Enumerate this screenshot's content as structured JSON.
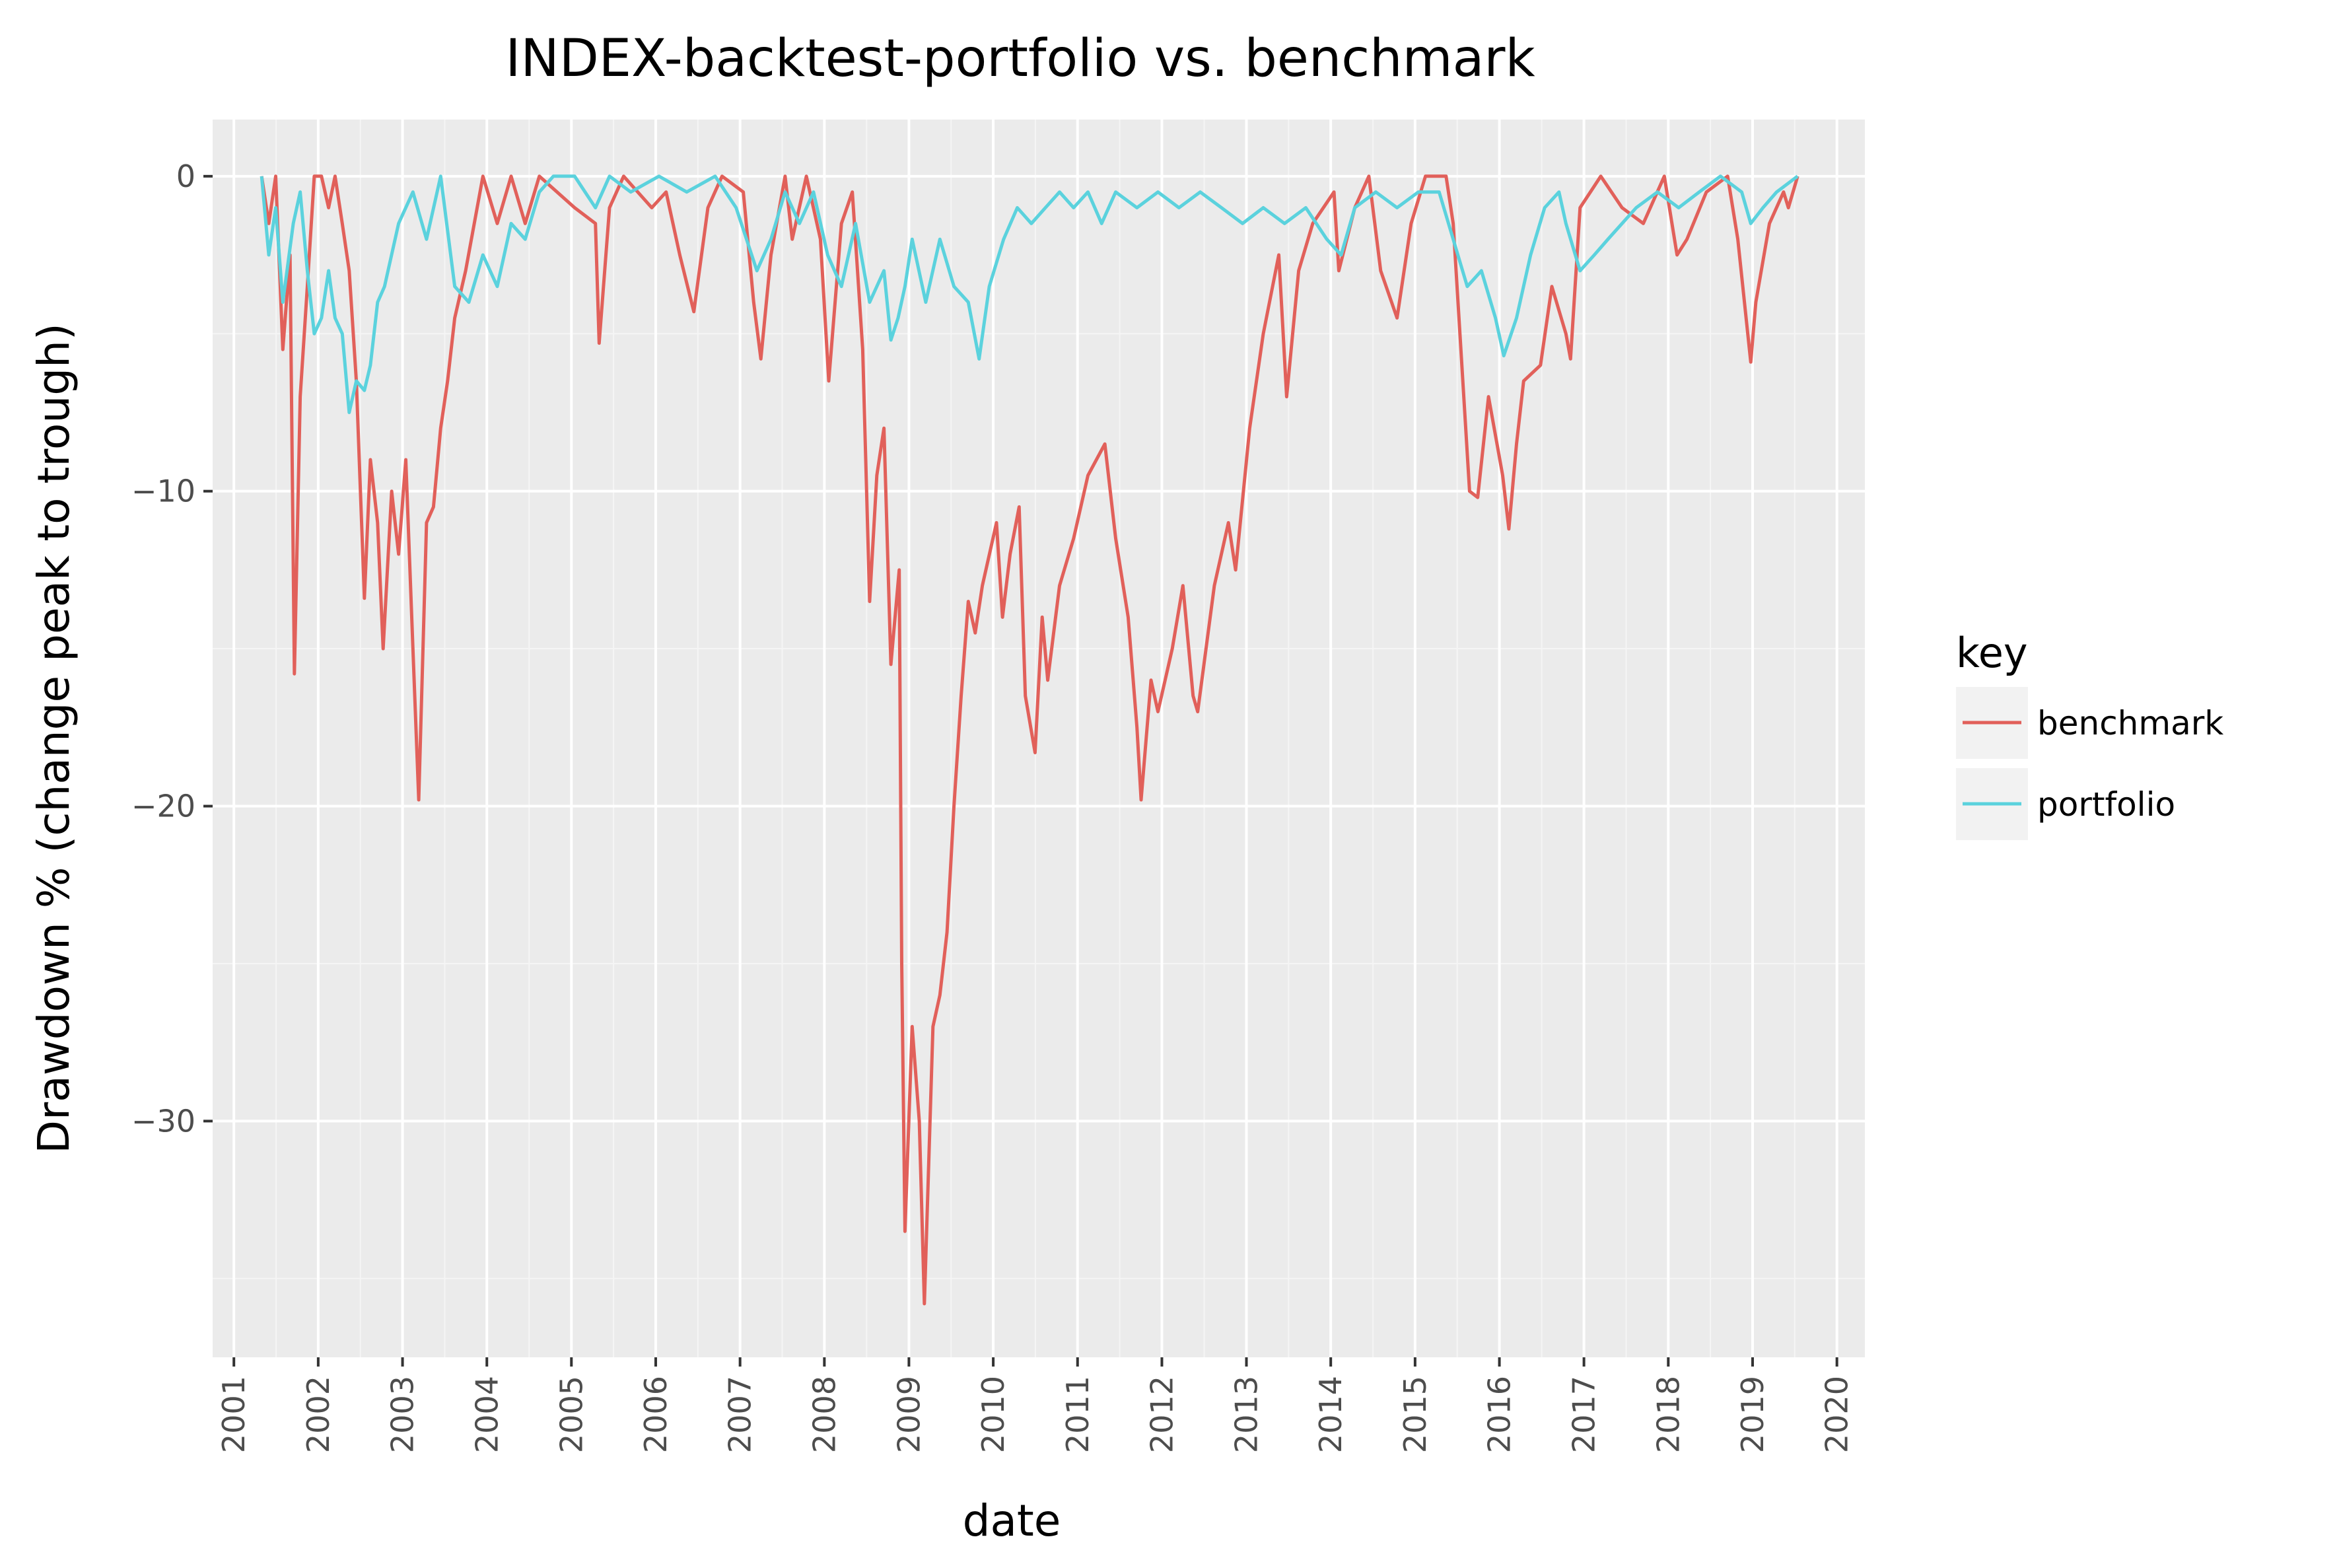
{
  "chart_data": {
    "type": "line",
    "title": "INDEX-backtest-portfolio vs. benchmark",
    "xlabel": "date",
    "ylabel": "Drawdown % (change peak to trough)",
    "xlim": [
      "2000-10-01",
      "2020-05-01"
    ],
    "ylim": [
      -37.5,
      1.8
    ],
    "x_ticks": [
      "2001",
      "2002",
      "2003",
      "2004",
      "2005",
      "2006",
      "2007",
      "2008",
      "2009",
      "2010",
      "2011",
      "2012",
      "2013",
      "2014",
      "2015",
      "2016",
      "2017",
      "2018",
      "2019",
      "2020"
    ],
    "y_ticks": [
      0,
      -10,
      -20,
      -30
    ],
    "y_tick_labels": [
      "0",
      "−10",
      "−20",
      "−30"
    ],
    "grid": true,
    "legend": {
      "title": "key",
      "position": "right"
    },
    "background": "#ebebeb",
    "series": [
      {
        "name": "benchmark",
        "color": "#e1605a",
        "points": [
          [
            "2001-05-01",
            0
          ],
          [
            "2001-06-01",
            -1.5
          ],
          [
            "2001-07-01",
            0
          ],
          [
            "2001-08-01",
            -5.5
          ],
          [
            "2001-09-01",
            -2.5
          ],
          [
            "2001-09-20",
            -15.8
          ],
          [
            "2001-10-15",
            -7.0
          ],
          [
            "2001-11-15",
            -3.5
          ],
          [
            "2001-12-15",
            0
          ],
          [
            "2002-01-15",
            0
          ],
          [
            "2002-02-15",
            -1.0
          ],
          [
            "2002-03-15",
            0
          ],
          [
            "2002-04-15",
            -1.5
          ],
          [
            "2002-05-15",
            -3.0
          ],
          [
            "2002-06-15",
            -6.5
          ],
          [
            "2002-07-20",
            -13.4
          ],
          [
            "2002-08-15",
            -9.0
          ],
          [
            "2002-09-15",
            -11.0
          ],
          [
            "2002-10-09",
            -15.0
          ],
          [
            "2002-11-15",
            -10.0
          ],
          [
            "2002-12-15",
            -12.0
          ],
          [
            "2003-01-15",
            -9.0
          ],
          [
            "2003-02-15",
            -15.0
          ],
          [
            "2003-03-12",
            -19.8
          ],
          [
            "2003-04-15",
            -11.0
          ],
          [
            "2003-05-15",
            -10.5
          ],
          [
            "2003-06-15",
            -8.0
          ],
          [
            "2003-07-15",
            -6.5
          ],
          [
            "2003-08-15",
            -4.5
          ],
          [
            "2003-10-01",
            -3.0
          ],
          [
            "2003-12-15",
            0
          ],
          [
            "2004-02-15",
            -1.5
          ],
          [
            "2004-04-15",
            0
          ],
          [
            "2004-06-15",
            -1.5
          ],
          [
            "2004-08-15",
            0
          ],
          [
            "2005-01-15",
            -1.0
          ],
          [
            "2005-04-15",
            -1.5
          ],
          [
            "2005-05-01",
            -5.3
          ],
          [
            "2005-06-15",
            -1.0
          ],
          [
            "2005-08-15",
            0
          ],
          [
            "2005-12-15",
            -1.0
          ],
          [
            "2006-02-15",
            -0.5
          ],
          [
            "2006-04-15",
            -2.5
          ],
          [
            "2006-06-15",
            -4.3
          ],
          [
            "2006-08-15",
            -1.0
          ],
          [
            "2006-10-15",
            0
          ],
          [
            "2007-01-15",
            -0.5
          ],
          [
            "2007-03-01",
            -4.0
          ],
          [
            "2007-04-01",
            -5.8
          ],
          [
            "2007-05-15",
            -2.5
          ],
          [
            "2007-07-15",
            0
          ],
          [
            "2007-08-15",
            -2.0
          ],
          [
            "2007-10-15",
            0
          ],
          [
            "2007-12-15",
            -2.0
          ],
          [
            "2008-01-20",
            -6.5
          ],
          [
            "2008-03-15",
            -1.5
          ],
          [
            "2008-05-01",
            -0.5
          ],
          [
            "2008-06-15",
            -5.5
          ],
          [
            "2008-07-15",
            -13.5
          ],
          [
            "2008-08-15",
            -9.5
          ],
          [
            "2008-09-15",
            -8.0
          ],
          [
            "2008-10-15",
            -15.5
          ],
          [
            "2008-11-20",
            -12.5
          ],
          [
            "2008-12-01",
            -25.0
          ],
          [
            "2008-12-15",
            -33.5
          ],
          [
            "2009-01-15",
            -27.0
          ],
          [
            "2009-02-15",
            -30.0
          ],
          [
            "2009-03-09",
            -35.8
          ],
          [
            "2009-04-15",
            -27.0
          ],
          [
            "2009-05-15",
            -26.0
          ],
          [
            "2009-06-15",
            -24.0
          ],
          [
            "2009-07-15",
            -20.0
          ],
          [
            "2009-08-15",
            -16.5
          ],
          [
            "2009-09-15",
            -13.5
          ],
          [
            "2009-10-15",
            -14.5
          ],
          [
            "2009-11-15",
            -13.0
          ],
          [
            "2010-01-15",
            -11.0
          ],
          [
            "2010-02-10",
            -14.0
          ],
          [
            "2010-03-15",
            -12.0
          ],
          [
            "2010-04-23",
            -10.5
          ],
          [
            "2010-05-20",
            -16.5
          ],
          [
            "2010-07-01",
            -18.3
          ],
          [
            "2010-08-01",
            -14.0
          ],
          [
            "2010-08-25",
            -16.0
          ],
          [
            "2010-10-15",
            -13.0
          ],
          [
            "2010-12-15",
            -11.5
          ],
          [
            "2011-02-15",
            -9.5
          ],
          [
            "2011-04-29",
            -8.5
          ],
          [
            "2011-06-15",
            -11.5
          ],
          [
            "2011-08-08",
            -14.0
          ],
          [
            "2011-09-15",
            -17.5
          ],
          [
            "2011-10-03",
            -19.8
          ],
          [
            "2011-11-15",
            -16.0
          ],
          [
            "2011-12-15",
            -17.0
          ],
          [
            "2012-02-15",
            -15.0
          ],
          [
            "2012-04-01",
            -13.0
          ],
          [
            "2012-05-15",
            -16.5
          ],
          [
            "2012-06-04",
            -17.0
          ],
          [
            "2012-08-15",
            -13.0
          ],
          [
            "2012-10-15",
            -11.0
          ],
          [
            "2012-11-15",
            -12.5
          ],
          [
            "2013-01-15",
            -8.0
          ],
          [
            "2013-03-15",
            -5.0
          ],
          [
            "2013-05-21",
            -2.5
          ],
          [
            "2013-06-24",
            -7.0
          ],
          [
            "2013-08-15",
            -3.0
          ],
          [
            "2013-10-15",
            -1.5
          ],
          [
            "2014-01-15",
            -0.5
          ],
          [
            "2014-02-05",
            -3.0
          ],
          [
            "2014-04-15",
            -1.0
          ],
          [
            "2014-06-15",
            0
          ],
          [
            "2014-08-05",
            -3.0
          ],
          [
            "2014-10-15",
            -4.5
          ],
          [
            "2014-12-15",
            -1.5
          ],
          [
            "2015-02-15",
            0
          ],
          [
            "2015-05-15",
            0
          ],
          [
            "2015-06-15",
            -1.5
          ],
          [
            "2015-08-25",
            -10.0
          ],
          [
            "2015-09-29",
            -10.2
          ],
          [
            "2015-11-15",
            -7.0
          ],
          [
            "2016-01-15",
            -9.5
          ],
          [
            "2016-02-11",
            -11.2
          ],
          [
            "2016-03-15",
            -8.5
          ],
          [
            "2016-04-15",
            -6.5
          ],
          [
            "2016-06-27",
            -6.0
          ],
          [
            "2016-08-15",
            -3.5
          ],
          [
            "2016-10-15",
            -5.0
          ],
          [
            "2016-11-04",
            -5.8
          ],
          [
            "2016-12-15",
            -1.0
          ],
          [
            "2017-03-15",
            0
          ],
          [
            "2017-06-15",
            -1.0
          ],
          [
            "2017-09-15",
            -1.5
          ],
          [
            "2017-12-15",
            0
          ],
          [
            "2018-02-08",
            -2.5
          ],
          [
            "2018-03-23",
            -2.0
          ],
          [
            "2018-06-15",
            -0.5
          ],
          [
            "2018-09-15",
            0
          ],
          [
            "2018-10-29",
            -2.0
          ],
          [
            "2018-12-24",
            -5.9
          ],
          [
            "2019-01-15",
            -4.0
          ],
          [
            "2019-03-15",
            -1.5
          ],
          [
            "2019-05-15",
            -0.5
          ],
          [
            "2019-06-05",
            -1.0
          ],
          [
            "2019-07-15",
            0
          ]
        ]
      },
      {
        "name": "portfolio",
        "color": "#5bd2dd",
        "points": [
          [
            "2001-05-01",
            0
          ],
          [
            "2001-06-01",
            -2.5
          ],
          [
            "2001-07-01",
            -1.0
          ],
          [
            "2001-08-01",
            -4.0
          ],
          [
            "2001-09-15",
            -1.5
          ],
          [
            "2001-10-15",
            -0.5
          ],
          [
            "2001-11-15",
            -3.0
          ],
          [
            "2001-12-15",
            -5.0
          ],
          [
            "2002-01-15",
            -4.5
          ],
          [
            "2002-02-15",
            -3.0
          ],
          [
            "2002-03-15",
            -4.5
          ],
          [
            "2002-04-15",
            -5.0
          ],
          [
            "2002-05-15",
            -7.5
          ],
          [
            "2002-06-15",
            -6.5
          ],
          [
            "2002-07-20",
            -6.8
          ],
          [
            "2002-08-15",
            -6.0
          ],
          [
            "2002-09-15",
            -4.0
          ],
          [
            "2002-10-15",
            -3.5
          ],
          [
            "2002-12-15",
            -1.5
          ],
          [
            "2003-02-15",
            -0.5
          ],
          [
            "2003-04-15",
            -2.0
          ],
          [
            "2003-06-15",
            0
          ],
          [
            "2003-08-15",
            -3.5
          ],
          [
            "2003-10-15",
            -4.0
          ],
          [
            "2003-12-15",
            -2.5
          ],
          [
            "2004-02-15",
            -3.5
          ],
          [
            "2004-04-15",
            -1.5
          ],
          [
            "2004-06-15",
            -2.0
          ],
          [
            "2004-08-15",
            -0.5
          ],
          [
            "2004-10-15",
            0
          ],
          [
            "2005-01-15",
            0
          ],
          [
            "2005-04-15",
            -1.0
          ],
          [
            "2005-06-15",
            0
          ],
          [
            "2005-09-15",
            -0.5
          ],
          [
            "2006-01-15",
            0
          ],
          [
            "2006-05-15",
            -0.5
          ],
          [
            "2006-09-15",
            0
          ],
          [
            "2006-12-15",
            -1.0
          ],
          [
            "2007-03-15",
            -3.0
          ],
          [
            "2007-05-15",
            -2.0
          ],
          [
            "2007-07-15",
            -0.5
          ],
          [
            "2007-09-15",
            -1.5
          ],
          [
            "2007-11-15",
            -0.5
          ],
          [
            "2008-01-15",
            -2.5
          ],
          [
            "2008-03-15",
            -3.5
          ],
          [
            "2008-05-15",
            -1.5
          ],
          [
            "2008-07-15",
            -4.0
          ],
          [
            "2008-09-15",
            -3.0
          ],
          [
            "2008-10-15",
            -5.2
          ],
          [
            "2008-11-15",
            -4.5
          ],
          [
            "2008-12-15",
            -3.5
          ],
          [
            "2009-01-15",
            -2.0
          ],
          [
            "2009-03-15",
            -4.0
          ],
          [
            "2009-05-15",
            -2.0
          ],
          [
            "2009-07-15",
            -3.5
          ],
          [
            "2009-09-15",
            -4.0
          ],
          [
            "2009-11-01",
            -5.8
          ],
          [
            "2009-12-15",
            -3.5
          ],
          [
            "2010-02-15",
            -2.0
          ],
          [
            "2010-04-15",
            -1.0
          ],
          [
            "2010-06-15",
            -1.5
          ],
          [
            "2010-08-15",
            -1.0
          ],
          [
            "2010-10-15",
            -0.5
          ],
          [
            "2010-12-15",
            -1.0
          ],
          [
            "2011-02-15",
            -0.5
          ],
          [
            "2011-04-15",
            -1.5
          ],
          [
            "2011-06-15",
            -0.5
          ],
          [
            "2011-09-15",
            -1.0
          ],
          [
            "2011-12-15",
            -0.5
          ],
          [
            "2012-03-15",
            -1.0
          ],
          [
            "2012-06-15",
            -0.5
          ],
          [
            "2012-09-15",
            -1.0
          ],
          [
            "2012-12-15",
            -1.5
          ],
          [
            "2013-03-15",
            -1.0
          ],
          [
            "2013-06-15",
            -1.5
          ],
          [
            "2013-09-15",
            -1.0
          ],
          [
            "2013-12-15",
            -2.0
          ],
          [
            "2014-02-15",
            -2.5
          ],
          [
            "2014-04-15",
            -1.0
          ],
          [
            "2014-07-15",
            -0.5
          ],
          [
            "2014-10-15",
            -1.0
          ],
          [
            "2015-01-15",
            -0.5
          ],
          [
            "2015-04-15",
            -0.5
          ],
          [
            "2015-06-15",
            -2.0
          ],
          [
            "2015-08-15",
            -3.5
          ],
          [
            "2015-10-15",
            -3.0
          ],
          [
            "2015-12-15",
            -4.5
          ],
          [
            "2016-01-20",
            -5.7
          ],
          [
            "2016-03-15",
            -4.5
          ],
          [
            "2016-05-15",
            -2.5
          ],
          [
            "2016-07-15",
            -1.0
          ],
          [
            "2016-09-15",
            -0.5
          ],
          [
            "2016-10-15",
            -1.5
          ],
          [
            "2016-12-15",
            -3.0
          ],
          [
            "2017-02-15",
            -2.5
          ],
          [
            "2017-04-15",
            -2.0
          ],
          [
            "2017-06-15",
            -1.5
          ],
          [
            "2017-08-15",
            -1.0
          ],
          [
            "2017-11-15",
            -0.5
          ],
          [
            "2018-02-15",
            -1.0
          ],
          [
            "2018-05-15",
            -0.5
          ],
          [
            "2018-08-15",
            0
          ],
          [
            "2018-11-15",
            -0.5
          ],
          [
            "2018-12-24",
            -1.5
          ],
          [
            "2019-02-15",
            -1.0
          ],
          [
            "2019-04-15",
            -0.5
          ],
          [
            "2019-07-15",
            0
          ]
        ]
      }
    ]
  }
}
